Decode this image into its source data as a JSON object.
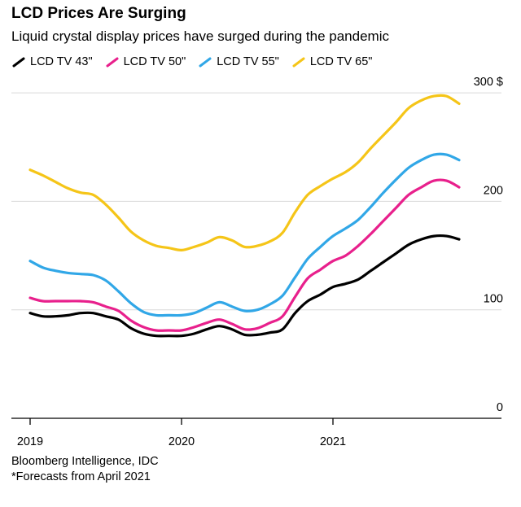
{
  "header": {
    "title": "LCD Prices Are Surging",
    "subtitle": "Liquid crystal display prices have surged during the pandemic"
  },
  "footer": {
    "source": "Bloomberg Intelligence, IDC",
    "note": "*Forecasts from April 2021"
  },
  "chart_data": {
    "type": "line",
    "title": "LCD Prices Are Surging",
    "subtitle": "Liquid crystal display prices have surged during the pandemic",
    "ylabel": "",
    "xlabel": "",
    "y_unit": "$",
    "ylim": [
      0,
      300
    ],
    "yticks": [
      {
        "value": 0,
        "label": "0"
      },
      {
        "value": 100,
        "label": "100"
      },
      {
        "value": 200,
        "label": "200"
      },
      {
        "value": 300,
        "label": "300 $"
      }
    ],
    "xticks": [
      {
        "value": "2019-01",
        "label": "2019"
      },
      {
        "value": "2020-01",
        "label": "2020"
      },
      {
        "value": "2021-01",
        "label": "2021"
      }
    ],
    "xlim": [
      "2019-01",
      "2021-12"
    ],
    "grid": true,
    "legend_position": "top-left",
    "x": [
      "2019-01",
      "2019-02",
      "2019-03",
      "2019-04",
      "2019-05",
      "2019-06",
      "2019-07",
      "2019-08",
      "2019-09",
      "2019-10",
      "2019-11",
      "2019-12",
      "2020-01",
      "2020-02",
      "2020-03",
      "2020-04",
      "2020-05",
      "2020-06",
      "2020-07",
      "2020-08",
      "2020-09",
      "2020-10",
      "2020-11",
      "2020-12",
      "2021-01",
      "2021-02",
      "2021-03",
      "2021-04",
      "2021-05",
      "2021-06",
      "2021-07",
      "2021-08",
      "2021-09",
      "2021-10",
      "2021-11"
    ],
    "series": [
      {
        "name": "LCD TV 43\"",
        "color": "#000000",
        "values": [
          97,
          94,
          94,
          95,
          97,
          97,
          94,
          91,
          83,
          78,
          76,
          76,
          76,
          78,
          82,
          85,
          82,
          77,
          77,
          79,
          82,
          97,
          108,
          114,
          121,
          124,
          128,
          136,
          144,
          152,
          160,
          165,
          168,
          168,
          165
        ]
      },
      {
        "name": "LCD TV 50\"",
        "color": "#e8208c",
        "values": [
          111,
          108,
          108,
          108,
          108,
          107,
          103,
          99,
          90,
          84,
          81,
          81,
          81,
          84,
          88,
          91,
          87,
          82,
          83,
          88,
          94,
          112,
          129,
          137,
          145,
          150,
          159,
          170,
          182,
          194,
          206,
          213,
          219,
          219,
          213
        ]
      },
      {
        "name": "LCD TV 55\"",
        "color": "#31a7e7",
        "values": [
          145,
          139,
          136,
          134,
          133,
          132,
          127,
          117,
          106,
          98,
          95,
          95,
          95,
          97,
          102,
          107,
          103,
          99,
          100,
          105,
          113,
          130,
          147,
          158,
          168,
          175,
          183,
          195,
          208,
          220,
          231,
          238,
          243,
          243,
          238
        ]
      },
      {
        "name": "LCD TV 65\"",
        "color": "#f5c518",
        "values": [
          229,
          224,
          218,
          212,
          208,
          206,
          197,
          185,
          172,
          164,
          159,
          157,
          155,
          158,
          162,
          167,
          164,
          158,
          159,
          163,
          171,
          190,
          206,
          214,
          221,
          227,
          236,
          249,
          261,
          273,
          286,
          293,
          297,
          297,
          290
        ]
      }
    ]
  }
}
